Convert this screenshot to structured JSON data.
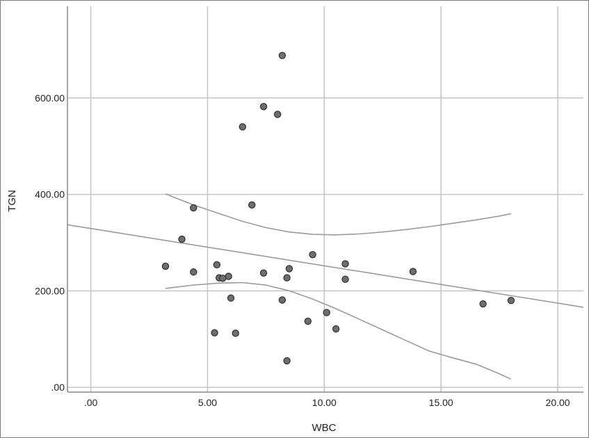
{
  "chart_data": {
    "type": "scatter",
    "xlabel": "WBC",
    "ylabel": "TGN",
    "xlim": [
      -1.0,
      21.1
    ],
    "ylim": [
      -10,
      790
    ],
    "x_ticks": [
      0,
      5,
      10,
      15,
      20
    ],
    "x_tick_labels": [
      ".00",
      "5.00",
      "10.00",
      "15.00",
      "20.00"
    ],
    "y_ticks": [
      0,
      200,
      400,
      600
    ],
    "y_tick_labels": [
      ".00",
      "200.00",
      "400.00",
      "600.00"
    ],
    "grid": true,
    "points": [
      {
        "x": 8.2,
        "y": 688
      },
      {
        "x": 7.4,
        "y": 582
      },
      {
        "x": 8.0,
        "y": 566
      },
      {
        "x": 6.5,
        "y": 540
      },
      {
        "x": 6.9,
        "y": 378
      },
      {
        "x": 4.4,
        "y": 372
      },
      {
        "x": 3.9,
        "y": 307
      },
      {
        "x": 9.5,
        "y": 275
      },
      {
        "x": 10.9,
        "y": 256
      },
      {
        "x": 3.2,
        "y": 251
      },
      {
        "x": 5.4,
        "y": 254
      },
      {
        "x": 8.5,
        "y": 246
      },
      {
        "x": 13.8,
        "y": 240
      },
      {
        "x": 4.4,
        "y": 239
      },
      {
        "x": 7.4,
        "y": 237
      },
      {
        "x": 5.9,
        "y": 230
      },
      {
        "x": 5.5,
        "y": 227
      },
      {
        "x": 5.65,
        "y": 226
      },
      {
        "x": 8.4,
        "y": 227
      },
      {
        "x": 10.9,
        "y": 224
      },
      {
        "x": 6.0,
        "y": 185
      },
      {
        "x": 8.2,
        "y": 181
      },
      {
        "x": 18.0,
        "y": 180
      },
      {
        "x": 16.8,
        "y": 173
      },
      {
        "x": 10.1,
        "y": 155
      },
      {
        "x": 9.3,
        "y": 137
      },
      {
        "x": 10.5,
        "y": 121
      },
      {
        "x": 5.3,
        "y": 113
      },
      {
        "x": 6.2,
        "y": 112
      },
      {
        "x": 8.4,
        "y": 55
      }
    ],
    "fit_line": [
      [
        -1.0,
        337
      ],
      [
        21.1,
        166
      ]
    ],
    "ci_upper": [
      [
        3.2,
        401
      ],
      [
        4.4,
        378
      ],
      [
        5.5,
        360
      ],
      [
        6.5,
        344
      ],
      [
        7.5,
        331
      ],
      [
        8.5,
        322
      ],
      [
        9.5,
        317
      ],
      [
        10.5,
        316
      ],
      [
        11.5,
        318
      ],
      [
        12.5,
        322
      ],
      [
        13.5,
        327
      ],
      [
        14.5,
        333
      ],
      [
        15.5,
        340
      ],
      [
        16.5,
        347
      ],
      [
        17.5,
        355
      ],
      [
        18.0,
        360
      ]
    ],
    "ci_lower": [
      [
        3.2,
        205
      ],
      [
        4.4,
        212
      ],
      [
        5.5,
        216
      ],
      [
        6.5,
        217
      ],
      [
        7.5,
        212
      ],
      [
        8.5,
        200
      ],
      [
        9.5,
        183
      ],
      [
        10.5,
        163
      ],
      [
        11.5,
        141
      ],
      [
        12.5,
        119
      ],
      [
        13.5,
        97
      ],
      [
        14.5,
        75
      ],
      [
        15.5,
        61
      ],
      [
        16.5,
        48
      ],
      [
        17.5,
        28
      ],
      [
        18.0,
        17
      ]
    ]
  }
}
